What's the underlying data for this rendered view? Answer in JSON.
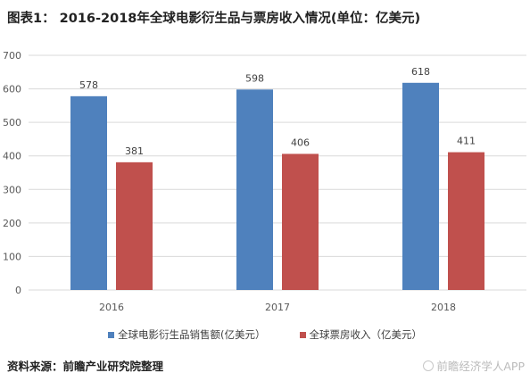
{
  "title": "图表1： 2016-2018年全球电影衍生品与票房收入情况(单位：亿美元)",
  "chart_data": {
    "type": "bar",
    "categories": [
      "2016",
      "2017",
      "2018"
    ],
    "series": [
      {
        "name": "全球电影衍生品销售额(亿美元）",
        "values": [
          578,
          598,
          618
        ],
        "color": "#4f81bd"
      },
      {
        "name": "全球票房收入（亿美元）",
        "values": [
          381,
          406,
          411
        ],
        "color": "#c0504d"
      }
    ],
    "ylim": [
      0,
      700
    ],
    "yticks": [
      0,
      100,
      200,
      300,
      400,
      500,
      600,
      700
    ],
    "grid": true,
    "legend": "bottom"
  },
  "source": "资料来源：前瞻产业研究院整理",
  "watermark": "前瞻经济学人APP"
}
